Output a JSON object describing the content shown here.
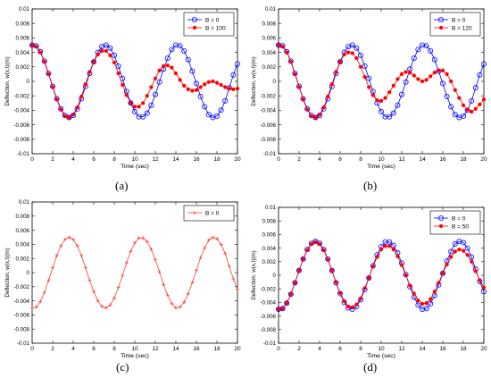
{
  "chart_data": [
    {
      "type": "line",
      "panel": "(a)",
      "xlabel": "Time (sec)",
      "ylabel": "Deflection, w(x,t)(m)",
      "xlim": [
        0,
        20
      ],
      "ylim": [
        -0.01,
        0.01
      ],
      "xticks": [
        "0",
        "2",
        "4",
        "6",
        "8",
        "10",
        "12",
        "14",
        "16",
        "18",
        "20"
      ],
      "yticks": [
        "-0.01",
        "-0.008",
        "-0.006",
        "-0.004",
        "-0.002",
        "0",
        "0.002",
        "0.004",
        "0.006",
        "0.008",
        "0.01"
      ],
      "grid": false,
      "legend_position": "top-right",
      "series": [
        {
          "name": "B = 0",
          "color": "#0000ff",
          "marker": "circle",
          "x": [
            0,
            0.4,
            0.8,
            1.2,
            1.6,
            2.0,
            2.4,
            2.8,
            3.2,
            3.6,
            4.0,
            4.4,
            4.8,
            5.2,
            5.6,
            6.0,
            6.4,
            6.8,
            7.2,
            7.6,
            8.0,
            8.4,
            8.8,
            9.2,
            9.6,
            10.0,
            10.4,
            10.8,
            11.2,
            11.6,
            12.0,
            12.4,
            12.8,
            13.2,
            13.6,
            14.0,
            14.4,
            14.8,
            15.2,
            15.6,
            16.0,
            16.4,
            16.8,
            17.2,
            17.6,
            18.0,
            18.4,
            18.8,
            19.2,
            19.6,
            20.0
          ],
          "y": [
            0.005,
            0.0049,
            0.0041,
            0.0028,
            0.0011,
            -0.0007,
            -0.0024,
            -0.0038,
            -0.0047,
            -0.005,
            -0.0047,
            -0.0038,
            -0.0024,
            -0.0007,
            0.0011,
            0.0027,
            0.004,
            0.0048,
            0.005,
            0.0046,
            0.0036,
            0.0021,
            0.0004,
            -0.0014,
            -0.003,
            -0.0042,
            -0.0049,
            -0.0049,
            -0.0044,
            -0.0033,
            -0.0018,
            -0.0001,
            0.0017,
            0.0032,
            0.0044,
            0.005,
            0.0049,
            0.0042,
            0.003,
            0.0014,
            -0.0003,
            -0.0021,
            -0.0035,
            -0.0046,
            -0.005,
            -0.0048,
            -0.004,
            -0.0027,
            -0.0009,
            0.0009,
            0.0024
          ]
        },
        {
          "name": "B = 100",
          "color": "#ff0000",
          "marker": "star",
          "x": [
            0,
            0.4,
            0.8,
            1.2,
            1.6,
            2.0,
            2.4,
            2.8,
            3.2,
            3.6,
            4.0,
            4.4,
            4.8,
            5.2,
            5.6,
            6.0,
            6.4,
            6.8,
            7.2,
            7.6,
            8.0,
            8.4,
            8.8,
            9.2,
            9.6,
            10.0,
            10.4,
            10.8,
            11.2,
            11.6,
            12.0,
            12.4,
            12.8,
            13.2,
            13.6,
            14.0,
            14.4,
            14.8,
            15.2,
            15.6,
            16.0,
            16.4,
            16.8,
            17.2,
            17.6,
            18.0,
            18.4,
            18.8,
            19.2,
            19.6,
            20.0
          ],
          "y": [
            0.005,
            0.0048,
            0.004,
            0.0027,
            0.001,
            -0.0008,
            -0.0025,
            -0.0039,
            -0.0048,
            -0.005,
            -0.0046,
            -0.0036,
            -0.0021,
            -0.0004,
            0.0013,
            0.0027,
            0.0037,
            0.0042,
            0.0042,
            0.0036,
            0.0026,
            0.0011,
            -0.0005,
            -0.0019,
            -0.003,
            -0.0035,
            -0.0035,
            -0.003,
            -0.002,
            -0.0008,
            0.0004,
            0.0015,
            0.0021,
            0.0022,
            0.0019,
            0.0011,
            0.0002,
            -0.0006,
            -0.0011,
            -0.0013,
            -0.0012,
            -0.0008,
            -0.0004,
            -0.0001,
            0.0,
            -0.0002,
            -0.0005,
            -0.0008,
            -0.001,
            -0.0011,
            -0.001
          ]
        }
      ]
    },
    {
      "type": "line",
      "panel": "(b)",
      "xlabel": "Time (sec)",
      "ylabel": "Deflection, w(x,t)(m)",
      "xlim": [
        0,
        20
      ],
      "ylim": [
        -0.01,
        0.01
      ],
      "xticks": [
        "0",
        "2",
        "4",
        "6",
        "8",
        "10",
        "12",
        "14",
        "16",
        "18",
        "20"
      ],
      "yticks": [
        "-0.01",
        "-0.008",
        "-0.006",
        "-0.004",
        "-0.002",
        "0",
        "0.002",
        "0.004",
        "0.006",
        "0.008",
        "0.01"
      ],
      "grid": false,
      "legend_position": "top-right",
      "series": [
        {
          "name": "B = 0",
          "color": "#0000ff",
          "marker": "circle",
          "x": [
            0,
            0.4,
            0.8,
            1.2,
            1.6,
            2.0,
            2.4,
            2.8,
            3.2,
            3.6,
            4.0,
            4.4,
            4.8,
            5.2,
            5.6,
            6.0,
            6.4,
            6.8,
            7.2,
            7.6,
            8.0,
            8.4,
            8.8,
            9.2,
            9.6,
            10.0,
            10.4,
            10.8,
            11.2,
            11.6,
            12.0,
            12.4,
            12.8,
            13.2,
            13.6,
            14.0,
            14.4,
            14.8,
            15.2,
            15.6,
            16.0,
            16.4,
            16.8,
            17.2,
            17.6,
            18.0,
            18.4,
            18.8,
            19.2,
            19.6,
            20.0
          ],
          "y": [
            0.005,
            0.0049,
            0.0041,
            0.0028,
            0.0011,
            -0.0007,
            -0.0024,
            -0.0038,
            -0.0047,
            -0.005,
            -0.0047,
            -0.0038,
            -0.0024,
            -0.0007,
            0.0011,
            0.0027,
            0.004,
            0.0048,
            0.005,
            0.0046,
            0.0036,
            0.0021,
            0.0004,
            -0.0014,
            -0.003,
            -0.0042,
            -0.0049,
            -0.0049,
            -0.0044,
            -0.0033,
            -0.0018,
            -0.0001,
            0.0017,
            0.0032,
            0.0044,
            0.005,
            0.0049,
            0.0042,
            0.003,
            0.0014,
            -0.0003,
            -0.0021,
            -0.0035,
            -0.0046,
            -0.005,
            -0.0048,
            -0.004,
            -0.0027,
            -0.0009,
            0.0009,
            0.0024
          ]
        },
        {
          "name": "B = 120",
          "color": "#ff0000",
          "marker": "star",
          "x": [
            0,
            0.4,
            0.8,
            1.2,
            1.6,
            2.0,
            2.4,
            2.8,
            3.2,
            3.6,
            4.0,
            4.4,
            4.8,
            5.2,
            5.6,
            6.0,
            6.4,
            6.8,
            7.2,
            7.6,
            8.0,
            8.4,
            8.8,
            9.2,
            9.6,
            10.0,
            10.4,
            10.8,
            11.2,
            11.6,
            12.0,
            12.4,
            12.8,
            13.2,
            13.6,
            14.0,
            14.4,
            14.8,
            15.2,
            15.6,
            16.0,
            16.4,
            16.8,
            17.2,
            17.6,
            18.0,
            18.4,
            18.8,
            19.2,
            19.6,
            20.0
          ],
          "y": [
            0.005,
            0.0048,
            0.004,
            0.0027,
            0.001,
            -0.0008,
            -0.0025,
            -0.0039,
            -0.0048,
            -0.005,
            -0.0046,
            -0.0036,
            -0.0021,
            -0.0004,
            0.0013,
            0.0027,
            0.0037,
            0.004,
            0.0039,
            0.0032,
            0.002,
            0.0006,
            -0.0008,
            -0.0019,
            -0.0026,
            -0.0027,
            -0.0023,
            -0.0015,
            -0.0006,
            0.0003,
            0.001,
            0.0013,
            0.0012,
            0.0008,
            0.0003,
            0.0,
            0.0002,
            0.0007,
            0.0012,
            0.0015,
            0.0015,
            0.001,
            0.0,
            -0.0012,
            -0.0023,
            -0.0033,
            -0.0039,
            -0.0042,
            -0.0038,
            -0.0032,
            -0.0025
          ]
        }
      ]
    },
    {
      "type": "line",
      "panel": "(c)",
      "xlabel": "Time (sec)",
      "ylabel": "Deflection, w(x,t)(m)",
      "xlim": [
        0,
        20
      ],
      "ylim": [
        -0.01,
        0.01
      ],
      "xticks": [
        "0",
        "2",
        "4",
        "6",
        "8",
        "10",
        "12",
        "14",
        "16",
        "18",
        "20"
      ],
      "yticks": [
        "-0.01",
        "-0.008",
        "-0.006",
        "-0.004",
        "-0.002",
        "0",
        "0.002",
        "0.004",
        "0.006",
        "0.008",
        "0.01"
      ],
      "grid": false,
      "legend_position": "top-right",
      "series": [
        {
          "name": "B = 0",
          "color": "#ff4040",
          "marker": "plus",
          "x": [
            0,
            0.4,
            0.8,
            1.2,
            1.6,
            2.0,
            2.4,
            2.8,
            3.2,
            3.6,
            4.0,
            4.4,
            4.8,
            5.2,
            5.6,
            6.0,
            6.4,
            6.8,
            7.2,
            7.6,
            8.0,
            8.4,
            8.8,
            9.2,
            9.6,
            10.0,
            10.4,
            10.8,
            11.2,
            11.6,
            12.0,
            12.4,
            12.8,
            13.2,
            13.6,
            14.0,
            14.4,
            14.8,
            15.2,
            15.6,
            16.0,
            16.4,
            16.8,
            17.2,
            17.6,
            18.0,
            18.4,
            18.8,
            19.2,
            19.6,
            20.0
          ],
          "y": [
            -0.005,
            -0.0049,
            -0.0041,
            -0.0028,
            -0.0011,
            0.0007,
            0.0024,
            0.0038,
            0.0047,
            0.005,
            0.0047,
            0.0038,
            0.0024,
            0.0007,
            -0.0011,
            -0.0027,
            -0.004,
            -0.0048,
            -0.005,
            -0.0046,
            -0.0036,
            -0.0021,
            -0.0004,
            0.0014,
            0.003,
            0.0042,
            0.0049,
            0.0049,
            0.0044,
            0.0033,
            0.0018,
            0.0001,
            -0.0017,
            -0.0032,
            -0.0044,
            -0.005,
            -0.0049,
            -0.0042,
            -0.003,
            -0.0014,
            0.0003,
            0.0021,
            0.0035,
            0.0046,
            0.005,
            0.0048,
            0.004,
            0.0027,
            0.0009,
            -0.0009,
            -0.0024
          ]
        }
      ]
    },
    {
      "type": "line",
      "panel": "(d)",
      "xlabel": "Time (sec)",
      "ylabel": "Deflection, w(x,t)(m)",
      "xlim": [
        0,
        20
      ],
      "ylim": [
        -0.01,
        0.01
      ],
      "xticks": [
        "0",
        "2",
        "4",
        "6",
        "8",
        "10",
        "12",
        "14",
        "16",
        "18",
        "20"
      ],
      "yticks": [
        "-0.01",
        "-0.008",
        "-0.006",
        "-0.004",
        "-0.002",
        "0",
        "0.002",
        "0.004",
        "0.006",
        "0.008",
        "0.01"
      ],
      "grid": false,
      "legend_position": "top-right",
      "series": [
        {
          "name": "B = 0",
          "color": "#0000ff",
          "marker": "circle",
          "x": [
            0,
            0.4,
            0.8,
            1.2,
            1.6,
            2.0,
            2.4,
            2.8,
            3.2,
            3.6,
            4.0,
            4.4,
            4.8,
            5.2,
            5.6,
            6.0,
            6.4,
            6.8,
            7.2,
            7.6,
            8.0,
            8.4,
            8.8,
            9.2,
            9.6,
            10.0,
            10.4,
            10.8,
            11.2,
            11.6,
            12.0,
            12.4,
            12.8,
            13.2,
            13.6,
            14.0,
            14.4,
            14.8,
            15.2,
            15.6,
            16.0,
            16.4,
            16.8,
            17.2,
            17.6,
            18.0,
            18.4,
            18.8,
            19.2,
            19.6,
            20.0
          ],
          "y": [
            -0.005,
            -0.0049,
            -0.0041,
            -0.0028,
            -0.0011,
            0.0007,
            0.0024,
            0.0038,
            0.0047,
            0.005,
            0.0047,
            0.0038,
            0.0024,
            0.0007,
            -0.0011,
            -0.0027,
            -0.004,
            -0.0048,
            -0.005,
            -0.0046,
            -0.0036,
            -0.0021,
            -0.0004,
            0.0014,
            0.003,
            0.0042,
            0.0049,
            0.0049,
            0.0044,
            0.0033,
            0.0018,
            0.0001,
            -0.0017,
            -0.0032,
            -0.0044,
            -0.005,
            -0.0049,
            -0.0042,
            -0.003,
            -0.0014,
            0.0003,
            0.0021,
            0.0035,
            0.0046,
            0.005,
            0.0048,
            0.004,
            0.0027,
            0.0009,
            -0.0009,
            -0.0024
          ]
        },
        {
          "name": "B = 50",
          "color": "#ff0000",
          "marker": "star",
          "x": [
            0,
            0.4,
            0.8,
            1.2,
            1.6,
            2.0,
            2.4,
            2.8,
            3.2,
            3.6,
            4.0,
            4.4,
            4.8,
            5.2,
            5.6,
            6.0,
            6.4,
            6.8,
            7.2,
            7.6,
            8.0,
            8.4,
            8.8,
            9.2,
            9.6,
            10.0,
            10.4,
            10.8,
            11.2,
            11.6,
            12.0,
            12.4,
            12.8,
            13.2,
            13.6,
            14.0,
            14.4,
            14.8,
            15.2,
            15.6,
            16.0,
            16.4,
            16.8,
            17.2,
            17.6,
            18.0,
            18.4,
            18.8,
            19.2,
            19.6,
            20.0
          ],
          "y": [
            -0.005,
            -0.0049,
            -0.0041,
            -0.0028,
            -0.0011,
            0.0007,
            0.0024,
            0.0037,
            0.0046,
            0.0049,
            0.0046,
            0.0037,
            0.0023,
            0.0007,
            -0.001,
            -0.0026,
            -0.0038,
            -0.0046,
            -0.0047,
            -0.0043,
            -0.0034,
            -0.0019,
            -0.0004,
            0.0013,
            0.0027,
            0.0038,
            0.0043,
            0.0043,
            0.0038,
            0.0028,
            0.0015,
            0.0,
            -0.0015,
            -0.0027,
            -0.0037,
            -0.0042,
            -0.0041,
            -0.0035,
            -0.0024,
            -0.0011,
            0.0003,
            0.0016,
            0.0027,
            0.0035,
            0.0038,
            0.0036,
            0.003,
            0.002,
            0.0006,
            -0.0007,
            -0.0018
          ]
        }
      ]
    }
  ]
}
